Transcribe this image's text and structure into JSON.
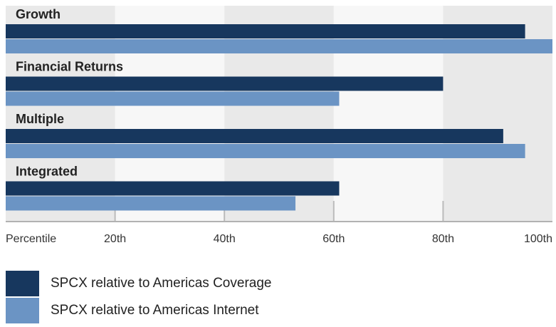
{
  "chart_data": {
    "type": "bar",
    "orientation": "horizontal",
    "categories": [
      "Growth",
      "Financial Returns",
      "Multiple",
      "Integrated"
    ],
    "series": [
      {
        "name": "SPCX relative to Americas Coverage",
        "values": [
          95,
          80,
          91,
          61
        ]
      },
      {
        "name": "SPCX relative to Americas Internet",
        "values": [
          100,
          61,
          95,
          53
        ]
      }
    ],
    "xlabel": "Percentile",
    "xticks": [
      "20th",
      "40th",
      "60th",
      "80th",
      "100th"
    ],
    "tick_values": [
      20,
      40,
      60,
      80,
      100
    ],
    "xlim": [
      0,
      100
    ],
    "grid": true,
    "legend_position": "bottom-left"
  },
  "colors": {
    "coverage": "#17375e",
    "internet": "#6b94c4",
    "band_dark": "#e9e9e9",
    "band_light": "#f7f7f7",
    "gridline": "#bbbbbb"
  },
  "legend": [
    {
      "label": "SPCX relative to Americas Coverage"
    },
    {
      "label": "SPCX relative to Americas Internet"
    }
  ]
}
